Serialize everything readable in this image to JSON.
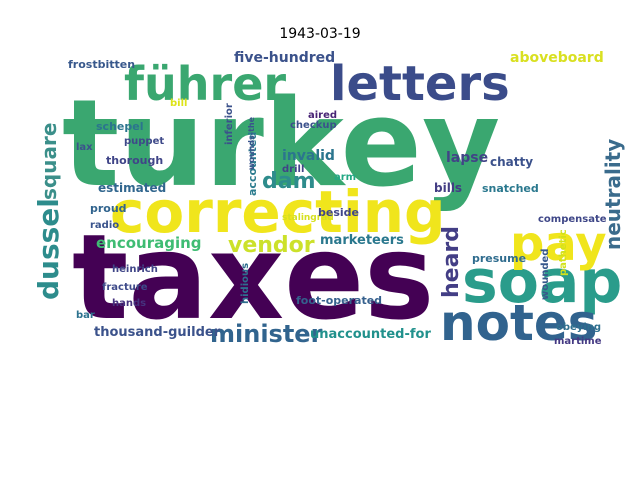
{
  "title": "1943-03-19",
  "words": [
    {
      "text": "turkey",
      "color": "#3aa770"
    },
    {
      "text": "taxes",
      "color": "#440154"
    },
    {
      "text": "correcting",
      "color": "#f0e51c"
    },
    {
      "text": "führer",
      "color": "#3aa770"
    },
    {
      "text": "letters",
      "color": "#3b4c8a"
    },
    {
      "text": "soap",
      "color": "#2a9c8b"
    },
    {
      "text": "notes",
      "color": "#31638e"
    },
    {
      "text": "pay",
      "color": "#f0e51c"
    },
    {
      "text": "dussel",
      "color": "#2d8c8c"
    },
    {
      "text": "square",
      "color": "#3b8f8a"
    },
    {
      "text": "neutrality",
      "color": "#3a6b8c"
    },
    {
      "text": "minister",
      "color": "#31648e"
    },
    {
      "text": "vendor",
      "color": "#cce12a"
    },
    {
      "text": "heard",
      "color": "#433e85"
    },
    {
      "text": "encouraging",
      "color": "#3fbc73"
    },
    {
      "text": "dam",
      "color": "#2e8c8c"
    },
    {
      "text": "five-hundred",
      "color": "#3b528b"
    },
    {
      "text": "aboveboard",
      "color": "#d9e021"
    },
    {
      "text": "frostbitten",
      "color": "#38588c"
    },
    {
      "text": "invalid",
      "color": "#2b758e"
    },
    {
      "text": "lapse",
      "color": "#414487"
    },
    {
      "text": "estimated",
      "color": "#31668e"
    },
    {
      "text": "marketeers",
      "color": "#2a788e"
    },
    {
      "text": "thousand-guilder",
      "color": "#3b528b"
    },
    {
      "text": "unaccounted-for",
      "color": "#21918c"
    },
    {
      "text": "foot-operated",
      "color": "#35608d"
    },
    {
      "text": "stalingrad",
      "color": "#d6e021"
    },
    {
      "text": "heinrich",
      "color": "#404688"
    },
    {
      "text": "hidious",
      "color": "#2e6e8e"
    },
    {
      "text": "fracture",
      "color": "#3e4a89"
    },
    {
      "text": "compensate",
      "color": "#3f4788"
    },
    {
      "text": "presume",
      "color": "#2f6c8e"
    },
    {
      "text": "obeying",
      "color": "#2e6f8e"
    },
    {
      "text": "snatched",
      "color": "#2a788e"
    },
    {
      "text": "chatty",
      "color": "#3b518b"
    },
    {
      "text": "bills",
      "color": "#433d84"
    },
    {
      "text": "drill",
      "color": "#404387"
    },
    {
      "text": "checkup",
      "color": "#3b518b"
    },
    {
      "text": "aired",
      "color": "#482475"
    },
    {
      "text": "puppet",
      "color": "#3e4989"
    },
    {
      "text": "thorough",
      "color": "#404588"
    },
    {
      "text": "schepel",
      "color": "#2b748e"
    },
    {
      "text": "accounted",
      "color": "#2a7b8e"
    },
    {
      "text": "radio",
      "color": "#3a548c"
    },
    {
      "text": "proud",
      "color": "#31648e"
    },
    {
      "text": "beside",
      "color": "#404588"
    },
    {
      "text": "hands",
      "color": "#46327e"
    },
    {
      "text": "lax",
      "color": "#3b528b"
    },
    {
      "text": "bar",
      "color": "#2c728e"
    },
    {
      "text": "martime",
      "color": "#443983"
    },
    {
      "text": "pathetic",
      "color": "#d2e21b"
    },
    {
      "text": "wounded",
      "color": "#38598c"
    },
    {
      "text": "inferior",
      "color": "#3b518b"
    },
    {
      "text": "arm",
      "color": "#22a884"
    },
    {
      "text": "bill",
      "color": "#dde318"
    },
    {
      "text": "wounds-the",
      "color": "#3a548c"
    }
  ]
}
